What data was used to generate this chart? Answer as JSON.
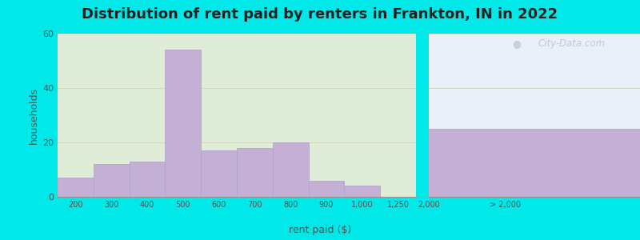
{
  "title": "Distribution of rent paid by renters in Frankton, IN in 2022",
  "xlabel": "rent paid ($)",
  "ylabel": "households",
  "bar_labels": [
    "200",
    "300",
    "400",
    "500",
    "600",
    "700",
    "800",
    "900",
    "1,000",
    "1,250",
    "2,000",
    "> 2,000"
  ],
  "bar_values": [
    7,
    12,
    13,
    54,
    17,
    18,
    20,
    6,
    4,
    0,
    0,
    25
  ],
  "bar_color": "#c4b0d4",
  "bar_edge_color": "#b0a0c8",
  "background_color": "#00e8e8",
  "ylim": [
    0,
    60
  ],
  "yticks": [
    0,
    20,
    40,
    60
  ],
  "title_fontsize": 13,
  "axis_label_fontsize": 9,
  "watermark_text": "City-Data.com",
  "grid_color": "#d0d8c0"
}
